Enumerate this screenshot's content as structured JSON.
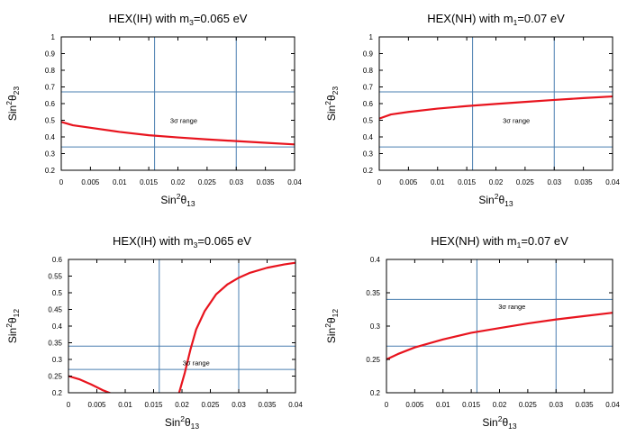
{
  "chart_data": [
    {
      "type": "line",
      "title": "HEX(IH) with m",
      "title_sub": "3",
      "title_tail": "=0.065 eV",
      "xlabel": "Sin",
      "xlabel_sup": "2",
      "xlabel_theta": "θ",
      "xlabel_sub": "13",
      "ylabel": "Sin",
      "ylabel_sup": "2",
      "ylabel_theta": "θ",
      "ylabel_sub": "23",
      "xlim": [
        0,
        0.04
      ],
      "ylim": [
        0.2,
        1.0
      ],
      "xticks": [
        "0",
        "0.005",
        "0.01",
        "0.015",
        "0.02",
        "0.025",
        "0.03",
        "0.035",
        "0.04"
      ],
      "yticks": [
        "0.2",
        "0.3",
        "0.4",
        "0.5",
        "0.6",
        "0.7",
        "0.8",
        "0.9",
        "1"
      ],
      "annotation": "3σ range",
      "annotation_at": [
        0.021,
        0.5
      ],
      "range_lines_x": [
        0.016,
        0.03
      ],
      "range_lines_y": [
        0.34,
        0.67
      ],
      "series": [
        {
          "values_x": [
            0.0,
            0.002,
            0.005,
            0.01,
            0.015,
            0.02,
            0.025,
            0.03,
            0.035,
            0.04
          ],
          "values_y": [
            0.49,
            0.47,
            0.455,
            0.43,
            0.41,
            0.397,
            0.385,
            0.375,
            0.365,
            0.355
          ]
        }
      ]
    },
    {
      "type": "line",
      "title": "HEX(NH) with m",
      "title_sub": "1",
      "title_tail": "=0.07 eV",
      "xlabel": "Sin",
      "xlabel_sup": "2",
      "xlabel_theta": "θ",
      "xlabel_sub": "13",
      "ylabel": "Sin",
      "ylabel_sup": "2",
      "ylabel_theta": "θ",
      "ylabel_sub": "23",
      "xlim": [
        0,
        0.04
      ],
      "ylim": [
        0.2,
        1.0
      ],
      "xticks": [
        "0",
        "0.005",
        "0.01",
        "0.015",
        "0.02",
        "0.025",
        "0.03",
        "0.035",
        "0.04"
      ],
      "yticks": [
        "0.2",
        "0.3",
        "0.4",
        "0.5",
        "0.6",
        "0.7",
        "0.8",
        "0.9",
        "1"
      ],
      "annotation": "3σ range",
      "annotation_at": [
        0.0235,
        0.5
      ],
      "range_lines_x": [
        0.016,
        0.03
      ],
      "range_lines_y": [
        0.34,
        0.67
      ],
      "series": [
        {
          "values_x": [
            0.0,
            0.002,
            0.005,
            0.01,
            0.015,
            0.02,
            0.025,
            0.03,
            0.035,
            0.04
          ],
          "values_y": [
            0.51,
            0.535,
            0.55,
            0.57,
            0.585,
            0.598,
            0.61,
            0.622,
            0.633,
            0.643
          ]
        }
      ]
    },
    {
      "type": "line",
      "title": "HEX(IH) with m",
      "title_sub": "3",
      "title_tail": "=0.065 eV",
      "xlabel": "Sin",
      "xlabel_sup": "2",
      "xlabel_theta": "θ",
      "xlabel_sub": "13",
      "ylabel": "Sin",
      "ylabel_sup": "2",
      "ylabel_theta": "θ",
      "ylabel_sub": "12",
      "xlim": [
        0,
        0.04
      ],
      "ylim": [
        0.2,
        0.6
      ],
      "xticks": [
        "0",
        "0.005",
        "0.01",
        "0.015",
        "0.02",
        "0.025",
        "0.03",
        "0.035",
        "0.04"
      ],
      "yticks": [
        "0.2",
        "0.25",
        "0.3",
        "0.35",
        "0.4",
        "0.45",
        "0.5",
        "0.55",
        "0.6"
      ],
      "annotation": "3σ range",
      "annotation_at": [
        0.0225,
        0.29
      ],
      "range_lines_x": [
        0.016,
        0.03
      ],
      "range_lines_y": [
        0.27,
        0.34
      ],
      "series": [
        {
          "values_x": [
            0.0,
            0.002,
            0.004,
            0.006,
            0.0075
          ],
          "values_y": [
            0.25,
            0.24,
            0.225,
            0.208,
            0.198
          ]
        },
        {
          "values_x": [
            0.0195,
            0.0205,
            0.0215,
            0.0225,
            0.024,
            0.026,
            0.028,
            0.03,
            0.032,
            0.035,
            0.038,
            0.04
          ],
          "values_y": [
            0.2,
            0.26,
            0.33,
            0.39,
            0.445,
            0.495,
            0.525,
            0.545,
            0.56,
            0.575,
            0.585,
            0.59
          ]
        }
      ]
    },
    {
      "type": "line",
      "title": "HEX(NH) with m",
      "title_sub": "1",
      "title_tail": "=0.07 eV",
      "xlabel": "Sin",
      "xlabel_sup": "2",
      "xlabel_theta": "θ",
      "xlabel_sub": "13",
      "ylabel": "Sin",
      "ylabel_sup": "2",
      "ylabel_theta": "θ",
      "ylabel_sub": "12",
      "xlim": [
        0,
        0.04
      ],
      "ylim": [
        0.2,
        0.4
      ],
      "xticks": [
        "0",
        "0.005",
        "0.01",
        "0.015",
        "0.02",
        "0.025",
        "0.03",
        "0.035",
        "0.04"
      ],
      "yticks": [
        "0.2",
        "0.25",
        "0.3",
        "0.35",
        "0.4"
      ],
      "annotation": "3σ range",
      "annotation_at": [
        0.0222,
        0.33
      ],
      "range_lines_x": [
        0.016,
        0.03
      ],
      "range_lines_y": [
        0.27,
        0.34
      ],
      "series": [
        {
          "values_x": [
            0.0,
            0.002,
            0.005,
            0.01,
            0.015,
            0.02,
            0.025,
            0.03,
            0.035,
            0.04
          ],
          "values_y": [
            0.25,
            0.258,
            0.268,
            0.28,
            0.29,
            0.297,
            0.304,
            0.31,
            0.315,
            0.32
          ]
        }
      ]
    }
  ],
  "colors": {
    "curve": "#e8141e",
    "range_lines": "#4a7fb0",
    "axes": "#000000"
  }
}
